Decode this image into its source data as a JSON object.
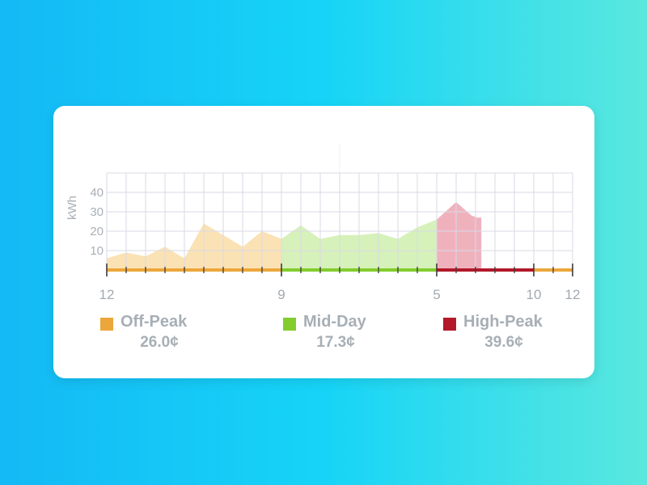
{
  "chart_data": {
    "type": "area",
    "ylabel": "kWh",
    "ylim": [
      0,
      50
    ],
    "yticks": [
      10,
      20,
      30,
      40
    ],
    "x_tick_labels": [
      {
        "hour": 0,
        "label": "12"
      },
      {
        "hour": 9,
        "label": "9"
      },
      {
        "hour": 17,
        "label": "5"
      },
      {
        "hour": 22,
        "label": "10"
      },
      {
        "hour": 24,
        "label": "12"
      }
    ],
    "xlim": [
      0,
      24
    ],
    "grid": true,
    "series": [
      {
        "name": "Off-Peak",
        "color": "#fbe2b4",
        "points": [
          [
            0,
            6
          ],
          [
            1,
            9
          ],
          [
            2,
            7
          ],
          [
            3,
            12
          ],
          [
            4,
            6
          ],
          [
            5,
            24
          ],
          [
            6,
            18
          ],
          [
            7,
            12
          ],
          [
            8,
            20
          ],
          [
            9,
            16
          ]
        ]
      },
      {
        "name": "Mid-Day",
        "color": "#d6f1b9",
        "points": [
          [
            9,
            16
          ],
          [
            10,
            23
          ],
          [
            11,
            16
          ],
          [
            12,
            18
          ],
          [
            13,
            18
          ],
          [
            14,
            19
          ],
          [
            15,
            16
          ],
          [
            16,
            22
          ],
          [
            17,
            26
          ]
        ]
      },
      {
        "name": "High-Peak",
        "color": "#efb2bd",
        "points": [
          [
            17,
            26
          ],
          [
            18,
            35
          ],
          [
            18.8,
            28
          ],
          [
            19.1,
            27
          ],
          [
            19.3,
            27
          ],
          [
            19.3,
            0
          ]
        ]
      }
    ],
    "periods": [
      {
        "start": 0,
        "end": 9,
        "color": "#eba73a"
      },
      {
        "start": 9,
        "end": 17,
        "color": "#82cd2d"
      },
      {
        "start": 17,
        "end": 22,
        "color": "#b3192a"
      },
      {
        "start": 22,
        "end": 24,
        "color": "#eba73a"
      }
    ]
  },
  "legend": [
    {
      "name": "Off-Peak",
      "rate": "26.0¢",
      "color": "#eba73a"
    },
    {
      "name": "Mid-Day",
      "rate": "17.3¢",
      "color": "#82cd2d"
    },
    {
      "name": "High-Peak",
      "rate": "39.6¢",
      "color": "#b3192a"
    }
  ]
}
